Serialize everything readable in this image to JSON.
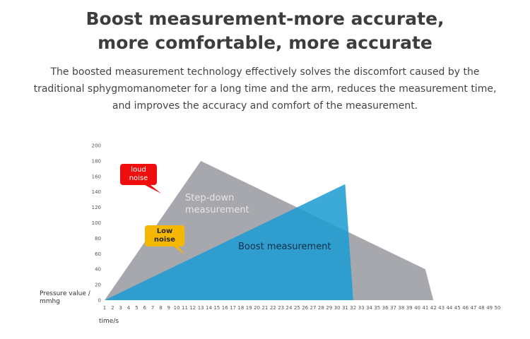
{
  "header": {
    "title_line1": "Boost measurement-more accurate,",
    "title_line2": "more comfortable, more accurate",
    "description": "The boosted measurement technology effectively solves the discomfort caused by the traditional sphygmomanometer for a long time and the arm, reduces the measurement time, and improves the accuracy and comfort of the measurement."
  },
  "callouts": {
    "loud_line1": "loud",
    "loud_line2": "noise",
    "low_line1": "Low",
    "low_line2": "noise"
  },
  "colors": {
    "step_down": "#a7a8ae",
    "boost": "#1a9bd2",
    "loud_bubble": "#f00d0d",
    "low_bubble": "#f6b700"
  },
  "chart_data": {
    "type": "area",
    "ylabel": "Pressure value / mmhg",
    "xlabel": "time/s",
    "ylim": [
      0,
      200
    ],
    "yticks": [
      0,
      20,
      40,
      60,
      80,
      100,
      120,
      140,
      160,
      180,
      200
    ],
    "xticks": [
      1,
      2,
      3,
      4,
      5,
      6,
      7,
      8,
      9,
      10,
      11,
      12,
      13,
      14,
      15,
      16,
      17,
      18,
      19,
      20,
      21,
      22,
      23,
      24,
      25,
      26,
      27,
      28,
      29,
      30,
      31,
      32,
      33,
      34,
      35,
      36,
      37,
      38,
      39,
      40,
      41,
      42,
      43,
      44,
      45,
      46,
      47,
      48,
      49,
      50
    ],
    "xlim": [
      1,
      50
    ],
    "grid": false,
    "series": [
      {
        "name": "Step-down measurement",
        "label_line1": "Step-down",
        "label_line2": "measurement",
        "points": [
          [
            1,
            0
          ],
          [
            13,
            180
          ],
          [
            41,
            40
          ],
          [
            42,
            0
          ]
        ]
      },
      {
        "name": "Boost measurement",
        "points": [
          [
            1,
            0
          ],
          [
            31,
            150
          ],
          [
            32,
            0
          ]
        ]
      }
    ]
  }
}
